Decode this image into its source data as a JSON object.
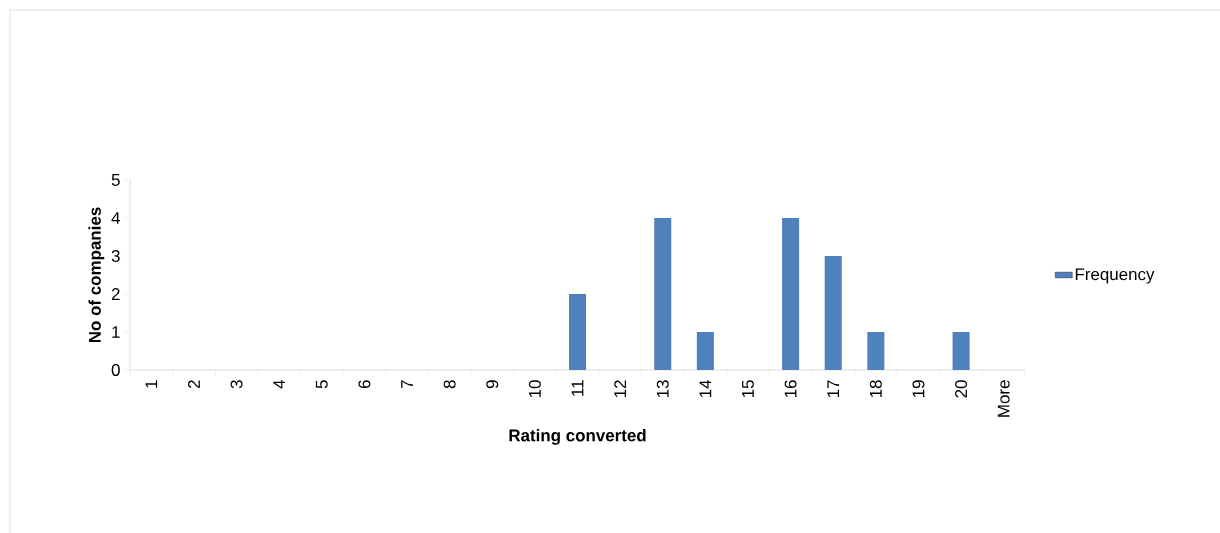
{
  "chart_data": {
    "type": "bar",
    "xlabel": "Rating converted",
    "ylabel": "No of companies",
    "categories": [
      "1",
      "2",
      "3",
      "4",
      "5",
      "6",
      "7",
      "8",
      "9",
      "10",
      "11",
      "12",
      "13",
      "14",
      "15",
      "16",
      "17",
      "18",
      "19",
      "20",
      "More"
    ],
    "series": [
      {
        "name": "Frequency",
        "color": "#4f81bd",
        "values": [
          0,
          0,
          0,
          0,
          0,
          0,
          0,
          0,
          0,
          0,
          2,
          0,
          4,
          1,
          0,
          4,
          3,
          1,
          0,
          1,
          0
        ]
      }
    ],
    "ylim": [
      0,
      5
    ],
    "yticks": [
      0,
      1,
      2,
      3,
      4,
      5
    ],
    "legend": "right"
  }
}
